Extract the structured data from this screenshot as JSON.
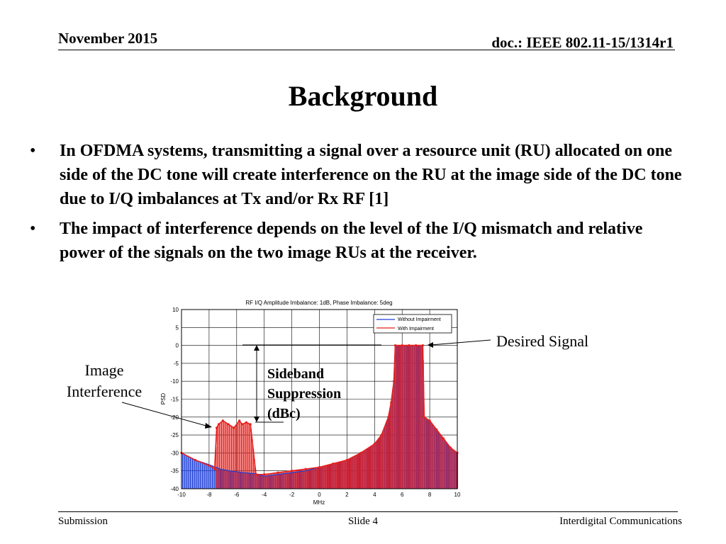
{
  "header": {
    "date": "November 2015",
    "doc_id": "doc.: IEEE 802.11-15/1314r1"
  },
  "slide": {
    "title": "Background",
    "bullets": [
      "In OFDMA systems, transmitting a signal over a resource unit (RU) allocated on one side of the DC tone will create interference on the RU at the image side of the DC tone due to I/Q imbalances at Tx and/or Rx RF [1]",
      "The impact of interference depends on the level of the I/Q mismatch and relative power of the signals on the two image RUs at the receiver."
    ],
    "bullet_symbol": "•"
  },
  "callouts": {
    "desired": "Desired Signal",
    "image_line1": "Image",
    "image_line2": "Interference",
    "sideband_line1": "Sideband",
    "sideband_line2": "Suppression",
    "sideband_line3": "(dBc)"
  },
  "chart_data": {
    "type": "line",
    "title": "RF I/Q Amplitude Imbalance: 1dB, Phase Imbalance: 5deg",
    "xlabel": "MHz",
    "ylabel": "PSD",
    "xlim": [
      -10,
      10
    ],
    "ylim": [
      -40,
      10
    ],
    "xticks": [
      -10,
      -8,
      -6,
      -4,
      -2,
      0,
      2,
      4,
      6,
      8,
      10
    ],
    "yticks": [
      10,
      5,
      0,
      -5,
      -10,
      -15,
      -20,
      -25,
      -30,
      -35,
      -40
    ],
    "grid": true,
    "legend_position": "top-right",
    "series": [
      {
        "name": "Without Impairment",
        "color": "#1f3fd6",
        "x": [
          -10,
          -9,
          -8.2,
          -7.5,
          -7.2,
          -6.5,
          -5.5,
          -5,
          -4.6,
          -4,
          -3,
          -2,
          -1,
          0,
          1,
          2,
          3,
          4,
          4.5,
          5,
          5.2,
          5.4,
          5.5,
          6,
          6.5,
          7,
          7.5,
          7.6,
          8,
          8.5,
          9,
          9.5,
          10
        ],
        "y": [
          -30,
          -32,
          -33,
          -34,
          -34.5,
          -35,
          -35.5,
          -35.7,
          -35.8,
          -36.5,
          -36,
          -35.5,
          -35,
          -34,
          -33,
          -32,
          -30,
          -27.5,
          -25,
          -20,
          -16,
          -10,
          0,
          0,
          0,
          0,
          0,
          -20,
          -21,
          -23.5,
          -26,
          -28.5,
          -30
        ]
      },
      {
        "name": "With Impairment",
        "color": "#e8201c",
        "x": [
          -10,
          -9,
          -8,
          -7.6,
          -7.45,
          -7.3,
          -7,
          -6.6,
          -6.2,
          -5.8,
          -5.6,
          -5.3,
          -5,
          -4.6,
          -4,
          -3,
          -2,
          -1,
          0,
          1,
          2,
          3,
          4,
          4.5,
          5,
          5.2,
          5.4,
          5.5,
          6,
          6.5,
          7,
          7.5,
          7.6,
          8,
          8.5,
          9,
          9.5,
          10
        ],
        "y": [
          -30,
          -32,
          -33.5,
          -34.5,
          -23,
          -22,
          -21,
          -22,
          -23,
          -21,
          -22,
          -21.5,
          -22,
          -36,
          -36,
          -35.5,
          -35,
          -34.5,
          -34,
          -33,
          -32,
          -30,
          -27.5,
          -25,
          -20,
          -16,
          -10,
          0,
          0,
          0,
          0,
          0,
          -20,
          -21,
          -23.5,
          -26,
          -28.5,
          -30
        ]
      }
    ]
  },
  "footer": {
    "left": "Submission",
    "center": "Slide 4",
    "right": "Interdigital Communications"
  }
}
